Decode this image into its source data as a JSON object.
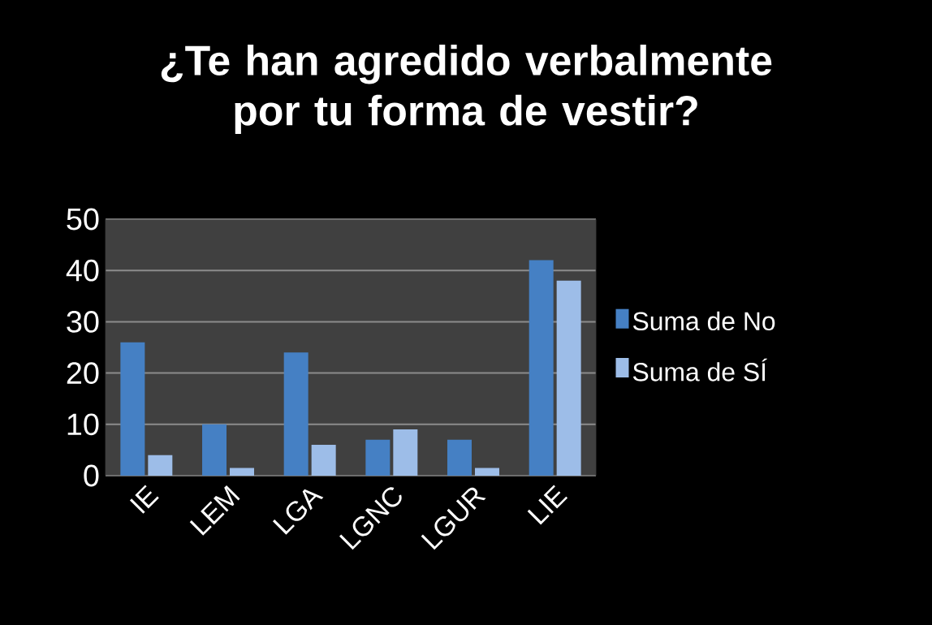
{
  "chart_data": {
    "type": "bar",
    "title": "¿Te han agredido verbalmente por tu forma de vestir?",
    "categories": [
      "IE",
      "LEM",
      "LGA",
      "LGNC",
      "LGUR",
      "LIE"
    ],
    "series": [
      {
        "name": "Suma de No",
        "color": "#4580c4",
        "values": [
          26,
          10,
          24,
          7,
          7,
          42
        ]
      },
      {
        "name": "Suma de SÍ",
        "color": "#9dbde8",
        "values": [
          4,
          1.5,
          6,
          9,
          1.5,
          38
        ]
      }
    ],
    "ylim": [
      0,
      50
    ],
    "yticks": [
      0,
      10,
      20,
      30,
      40,
      50
    ],
    "grid": "y",
    "legend": "right"
  }
}
